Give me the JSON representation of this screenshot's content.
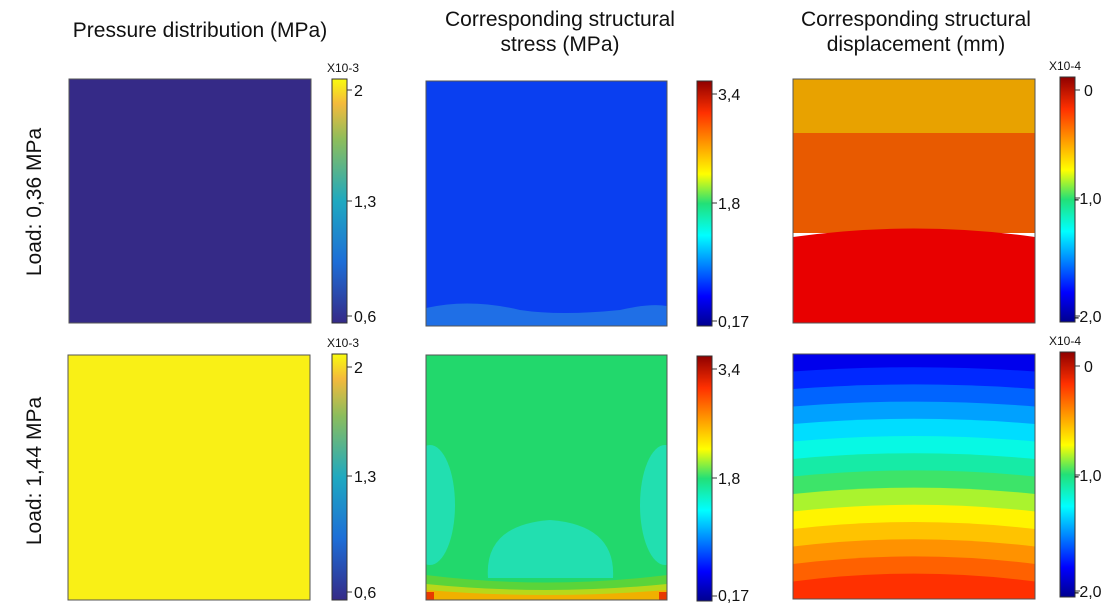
{
  "titles": {
    "col1": "Pressure distribution (MPa)",
    "col2_line1": "Corresponding structural",
    "col2_line2": "stress (MPa)",
    "col3_line1": "Corresponding structural",
    "col3_line2": "displacement (mm)"
  },
  "rows": {
    "row1": "Load: 0,36 MPa",
    "row2": "Load: 1,44 MPa"
  },
  "chart_data": [
    {
      "type": "heatmap",
      "panel": "pressure-load-0.36",
      "colorbar": {
        "min": 0.6,
        "max": 2.1,
        "ticks": [
          "2",
          "1,3",
          "0,6"
        ],
        "multiplier": "X10-3",
        "colormap": "parula"
      },
      "field": "uniform",
      "value": 0.6
    },
    {
      "type": "heatmap",
      "panel": "stress-load-0.36",
      "colorbar": {
        "min": 0.17,
        "max": 3.6,
        "ticks": [
          "3,4",
          "1,8",
          "0,17"
        ],
        "colormap": "jet"
      },
      "field": "near-uniform low, slightly higher band at bottom edge",
      "value": 0.3
    },
    {
      "type": "heatmap",
      "panel": "displacement-load-0.36",
      "colorbar": {
        "min": -2.0,
        "max": 0.2,
        "ticks": [
          "0",
          "-1,0",
          "-2,0"
        ],
        "multiplier": "X10-4",
        "colormap": "jet"
      },
      "field": "three horizontal bands top to bottom",
      "bands": [
        -0.35,
        -0.2,
        -0.05
      ]
    },
    {
      "type": "heatmap",
      "panel": "pressure-load-1.44",
      "colorbar": {
        "min": 0.6,
        "max": 2.1,
        "ticks": [
          "2",
          "1,3",
          "0,6"
        ],
        "multiplier": "X10-3",
        "colormap": "parula"
      },
      "field": "uniform",
      "value": 2.1
    },
    {
      "type": "heatmap",
      "panel": "stress-load-1.44",
      "colorbar": {
        "min": 0.17,
        "max": 3.6,
        "ticks": [
          "3,4",
          "1,8",
          "0,17"
        ],
        "colormap": "jet"
      },
      "field": "mostly mid value with lower lobes at sides and bottom center, higher at bottom edge",
      "value": 1.9
    },
    {
      "type": "heatmap",
      "panel": "displacement-load-1.44",
      "colorbar": {
        "min": -2.0,
        "max": 0.2,
        "ticks": [
          "0",
          "-1,0",
          "-2,0"
        ],
        "multiplier": "X10-4",
        "colormap": "jet"
      },
      "field": "horizontal bands from about -1.9 at top to about 0 at bottom"
    }
  ]
}
